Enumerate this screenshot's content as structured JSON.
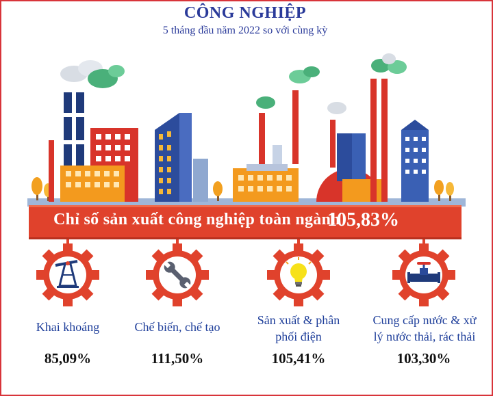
{
  "header": {
    "title": "CÔNG NGHIỆP",
    "subtitle": "5 tháng đầu năm 2022 so với cùng kỳ"
  },
  "banner": {
    "label": "Chỉ số sản xuất công nghiệp toàn ngành",
    "value": "105,83%"
  },
  "sectors": [
    {
      "label_line1": "Khai khoáng",
      "label_line2": "",
      "value": "85,09%",
      "icon": "oil-pump-icon"
    },
    {
      "label_line1": "Chế biến, chế tạo",
      "label_line2": "",
      "value": "111,50%",
      "icon": "wrench-icon"
    },
    {
      "label_line1": "Sản xuất & phân",
      "label_line2": "phối điện",
      "value": "105,41%",
      "icon": "light-bulb-icon"
    },
    {
      "label_line1": "Cung cấp nước & xử",
      "label_line2": "lý nước thải, rác thải",
      "value": "103,30%",
      "icon": "water-valve-icon"
    }
  ],
  "colors": {
    "title": "#2a3a9a",
    "banner": "#e0422c",
    "gear": "#e0422c",
    "label": "#1e3e9a",
    "frame": "#d8343a"
  }
}
